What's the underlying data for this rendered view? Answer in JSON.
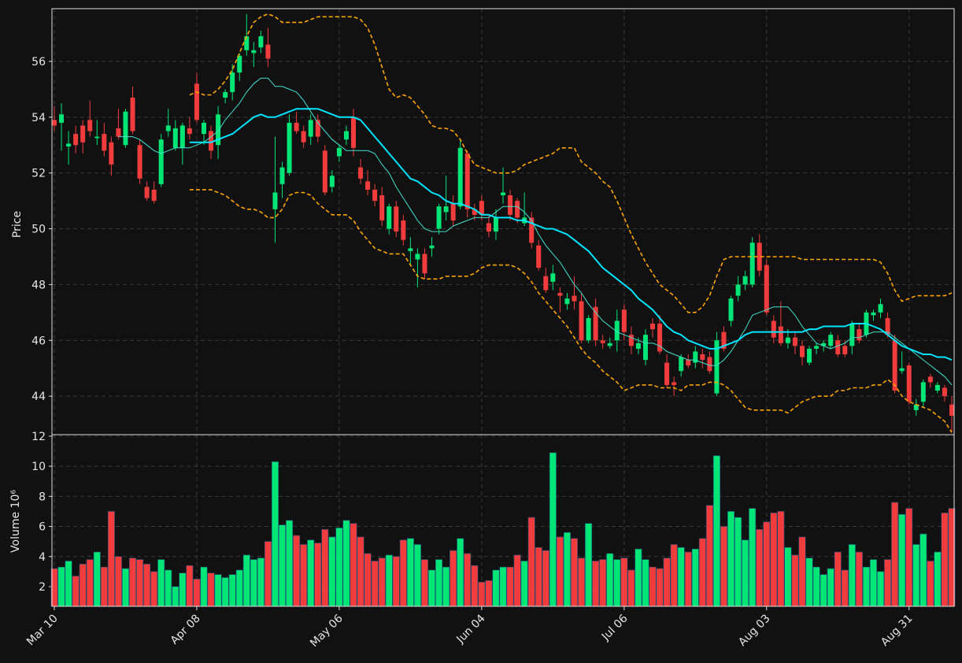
{
  "chart_data": {
    "type": "candlestick",
    "categories": [
      "Mar 10",
      null,
      null,
      null,
      null,
      null,
      null,
      null,
      null,
      null,
      null,
      null,
      null,
      null,
      null,
      null,
      null,
      null,
      null,
      null,
      "Apr 08",
      null,
      null,
      null,
      null,
      null,
      null,
      null,
      null,
      null,
      null,
      null,
      null,
      null,
      null,
      null,
      null,
      null,
      null,
      null,
      "May 06",
      null,
      null,
      null,
      null,
      null,
      null,
      null,
      null,
      null,
      null,
      null,
      null,
      null,
      null,
      null,
      null,
      null,
      null,
      null,
      "Jun 04",
      null,
      null,
      null,
      null,
      null,
      null,
      null,
      null,
      null,
      null,
      null,
      null,
      null,
      null,
      null,
      null,
      null,
      null,
      null,
      "Jul 06",
      null,
      null,
      null,
      null,
      null,
      null,
      null,
      null,
      null,
      null,
      null,
      null,
      null,
      null,
      null,
      null,
      null,
      null,
      null,
      "Aug 03",
      null,
      null,
      null,
      null,
      null,
      null,
      null,
      null,
      null,
      null,
      null,
      null,
      null,
      null,
      null,
      null,
      null,
      null,
      null,
      "Aug 31",
      null,
      null,
      null,
      null,
      null,
      null
    ],
    "open": [
      53.9,
      53.8,
      52.95,
      53.4,
      53.7,
      53.9,
      53.25,
      53.4,
      53.1,
      53.6,
      53.0,
      54.7,
      53.0,
      51.5,
      51.4,
      51.6,
      53.5,
      52.9,
      52.9,
      53.6,
      55.2,
      53.4,
      53.5,
      53.0,
      54.7,
      54.9,
      55.6,
      56.4,
      56.3,
      56.5,
      56.6,
      50.7,
      51.6,
      52.0,
      53.8,
      53.5,
      53.3,
      53.9,
      52.8,
      51.5,
      52.6,
      53.2,
      54.0,
      52.2,
      51.7,
      51.4,
      51.2,
      50.0,
      50.8,
      50.3,
      49.2,
      48.9,
      49.1,
      49.3,
      50.0,
      50.6,
      50.9,
      50.8,
      52.7,
      50.7,
      51.0,
      50.2,
      49.9,
      51.2,
      51.2,
      51.0,
      50.2,
      50.4,
      49.4,
      48.3,
      48.1,
      47.7,
      47.3,
      47.6,
      47.4,
      46.0,
      47.2,
      46.0,
      45.8,
      46.0,
      47.1,
      46.2,
      45.7,
      45.3,
      46.6,
      46.6,
      45.2,
      44.5,
      44.9,
      45.3,
      45.2,
      45.5,
      45.4,
      44.1,
      46.3,
      46.7,
      47.6,
      48.0,
      48.0,
      49.5,
      48.7,
      46.7,
      46.5,
      45.9,
      46.1,
      45.8,
      45.2,
      45.7,
      45.8,
      45.8,
      46.0,
      45.8,
      45.8,
      46.4,
      46.2,
      46.9,
      47.0,
      46.8,
      46.0,
      44.9,
      45.1,
      43.5,
      43.8,
      44.7,
      44.2,
      44.3,
      43.7
    ],
    "high": [
      54.4,
      54.5,
      53.5,
      53.7,
      53.9,
      54.6,
      53.9,
      53.8,
      53.3,
      54.3,
      54.3,
      55.1,
      53.2,
      51.7,
      51.7,
      53.4,
      54.3,
      53.9,
      53.8,
      54.0,
      55.6,
      53.9,
      53.7,
      54.4,
      55.0,
      55.9,
      56.3,
      57.7,
      56.7,
      57.1,
      57.2,
      53.3,
      52.4,
      54.1,
      54.2,
      53.7,
      54.1,
      54.1,
      53.0,
      52.1,
      53.0,
      53.7,
      54.3,
      52.5,
      52.1,
      51.6,
      51.5,
      50.9,
      51.0,
      50.5,
      49.7,
      49.3,
      49.3,
      49.7,
      50.9,
      51.9,
      51.2,
      53.2,
      52.8,
      50.9,
      51.2,
      50.5,
      50.7,
      52.2,
      51.4,
      51.1,
      51.3,
      50.6,
      49.6,
      48.6,
      48.7,
      47.9,
      47.7,
      48.3,
      47.7,
      46.9,
      47.5,
      46.2,
      46.1,
      47.1,
      47.3,
      46.5,
      46.1,
      46.4,
      46.8,
      46.9,
      45.5,
      44.7,
      45.5,
      45.5,
      45.8,
      45.7,
      45.6,
      46.3,
      46.5,
      47.6,
      48.3,
      48.5,
      49.7,
      49.8,
      48.9,
      46.9,
      47.4,
      46.4,
      46.3,
      46.0,
      45.8,
      45.9,
      46.0,
      46.3,
      46.2,
      46.0,
      46.7,
      46.6,
      47.1,
      47.1,
      47.5,
      47.0,
      46.2,
      45.6,
      45.2,
      43.9,
      44.6,
      44.8,
      44.5,
      44.4,
      44.0
    ],
    "low": [
      53.5,
      52.8,
      52.3,
      52.7,
      52.7,
      53.3,
      53.0,
      52.6,
      51.9,
      53.2,
      52.9,
      53.4,
      51.6,
      51.0,
      50.9,
      51.5,
      53.3,
      52.8,
      52.3,
      53.2,
      53.8,
      53.0,
      52.5,
      52.5,
      54.5,
      54.6,
      55.3,
      56.2,
      55.8,
      56.3,
      55.8,
      49.5,
      51.1,
      51.9,
      53.4,
      52.9,
      53.0,
      53.1,
      51.2,
      51.3,
      52.4,
      53.0,
      52.6,
      51.6,
      51.2,
      50.8,
      50.1,
      49.8,
      49.7,
      49.4,
      48.7,
      47.9,
      48.2,
      49.0,
      49.8,
      50.3,
      50.1,
      50.7,
      50.4,
      50.3,
      50.3,
      49.7,
      49.6,
      50.9,
      50.3,
      50.2,
      50.1,
      49.3,
      48.5,
      47.7,
      47.8,
      47.0,
      47.1,
      47.1,
      45.9,
      45.9,
      45.8,
      45.7,
      45.7,
      45.6,
      46.0,
      45.5,
      45.5,
      45.1,
      46.1,
      45.5,
      44.3,
      44.0,
      44.7,
      45.0,
      45.0,
      45.0,
      44.8,
      44.0,
      45.6,
      46.5,
      47.4,
      47.8,
      47.9,
      48.3,
      46.9,
      45.9,
      45.8,
      45.7,
      45.5,
      45.1,
      45.1,
      45.5,
      45.6,
      45.7,
      45.4,
      45.4,
      45.5,
      45.9,
      46.1,
      46.7,
      46.8,
      46.1,
      44.1,
      44.8,
      43.7,
      43.3,
      43.6,
      44.3,
      44.1,
      43.8,
      42.7
    ],
    "close": [
      53.7,
      54.1,
      53.05,
      53.0,
      53.1,
      53.5,
      53.3,
      52.8,
      52.3,
      53.3,
      54.2,
      53.5,
      51.8,
      51.1,
      51.0,
      53.2,
      53.7,
      53.6,
      53.7,
      53.4,
      53.9,
      53.8,
      52.8,
      54.1,
      54.9,
      55.6,
      56.2,
      56.9,
      56.4,
      56.9,
      56.1,
      51.3,
      52.2,
      53.8,
      53.5,
      53.1,
      53.9,
      53.3,
      51.3,
      51.9,
      52.9,
      53.5,
      52.9,
      51.8,
      51.4,
      51.0,
      50.3,
      50.8,
      49.9,
      49.6,
      49.3,
      49.1,
      48.4,
      49.4,
      50.8,
      50.8,
      50.3,
      52.9,
      50.7,
      50.5,
      50.5,
      49.9,
      50.4,
      51.3,
      50.5,
      50.4,
      50.4,
      49.5,
      48.6,
      47.8,
      48.4,
      47.6,
      47.5,
      47.4,
      46.0,
      46.8,
      46.0,
      45.9,
      45.9,
      46.7,
      46.3,
      45.8,
      45.9,
      46.2,
      46.4,
      45.6,
      44.4,
      44.4,
      45.4,
      45.1,
      45.6,
      45.3,
      44.9,
      46.0,
      45.7,
      47.5,
      48.0,
      48.3,
      49.5,
      48.5,
      47.0,
      46.1,
      45.9,
      46.1,
      45.8,
      45.4,
      45.7,
      45.8,
      45.9,
      46.2,
      45.5,
      45.5,
      46.6,
      46.0,
      47.0,
      47.0,
      47.3,
      46.2,
      44.2,
      45.0,
      43.8,
      43.7,
      44.5,
      44.5,
      44.4,
      44.0,
      43.3
    ],
    "volume": [
      3.2,
      3.3,
      3.7,
      2.7,
      3.5,
      3.8,
      4.3,
      3.3,
      7.0,
      4.0,
      3.2,
      3.9,
      3.8,
      3.5,
      3.0,
      3.8,
      3.1,
      2.0,
      2.9,
      3.4,
      2.5,
      3.3,
      2.9,
      2.8,
      2.6,
      2.8,
      3.1,
      4.1,
      3.8,
      3.9,
      5.0,
      10.3,
      6.1,
      6.4,
      5.4,
      4.8,
      5.1,
      4.9,
      5.8,
      5.3,
      5.9,
      6.4,
      6.2,
      5.3,
      4.2,
      3.7,
      3.9,
      4.1,
      4.0,
      5.1,
      5.2,
      4.8,
      3.8,
      3.1,
      3.8,
      3.3,
      4.4,
      5.2,
      4.2,
      3.4,
      2.3,
      2.4,
      3.1,
      3.3,
      3.3,
      4.1,
      3.7,
      6.6,
      4.6,
      4.4,
      10.9,
      5.3,
      5.6,
      5.2,
      3.9,
      6.2,
      3.7,
      3.8,
      4.2,
      3.8,
      3.9,
      3.1,
      4.5,
      3.8,
      3.3,
      3.2,
      3.9,
      4.8,
      4.6,
      4.3,
      4.5,
      5.2,
      7.4,
      10.7,
      6.0,
      7.0,
      6.6,
      5.1,
      7.2,
      5.8,
      6.3,
      6.9,
      7.0,
      4.6,
      4.1,
      5.3,
      3.9,
      3.3,
      2.8,
      3.2,
      4.3,
      3.1,
      4.8,
      4.3,
      3.3,
      3.8,
      3.0,
      3.8,
      7.6,
      6.8,
      7.2,
      4.8,
      5.5,
      3.7,
      4.3,
      6.9,
      7.2
    ],
    "up_color": "#00e676",
    "down_color": "#f03c3c",
    "grid": true,
    "price_axis": {
      "ylabel": "Price",
      "ylim": [
        42.62,
        57.89
      ],
      "yticks": [
        44,
        46,
        48,
        50,
        52,
        54,
        56
      ]
    },
    "volume_axis": {
      "ylabel": "Volume  10⁶",
      "ylim": [
        0.69,
        12.1
      ],
      "yticks": [
        2,
        4,
        6,
        8,
        10,
        12
      ]
    },
    "overlays": [
      {
        "color": "#40e0d0",
        "style": "thin",
        "values": [
          null,
          null,
          null,
          null,
          null,
          null,
          null,
          null,
          null,
          53.3,
          53.3,
          53.3,
          53.2,
          53.0,
          52.8,
          52.7,
          52.8,
          52.9,
          52.9,
          52.9,
          53.0,
          53.1,
          53.3,
          53.5,
          53.9,
          54.2,
          54.5,
          54.9,
          55.2,
          55.4,
          55.4,
          55.1,
          55.1,
          55.0,
          54.9,
          54.6,
          54.2,
          53.8,
          53.5,
          53.2,
          53.0,
          52.8,
          52.8,
          52.8,
          52.8,
          52.7,
          52.3,
          52.0,
          51.5,
          51.1,
          50.7,
          50.3,
          50.0,
          49.9,
          49.9,
          49.9,
          50.1,
          50.2,
          50.3,
          50.4,
          50.4,
          50.4,
          50.6,
          50.8,
          50.8,
          50.8,
          50.6,
          50.3,
          49.8,
          49.4,
          49.1,
          48.8,
          48.4,
          48.0,
          47.7,
          47.3,
          47.0,
          46.7,
          46.5,
          46.3,
          46.2,
          46.1,
          46.0,
          45.9,
          45.9,
          45.8,
          45.6,
          45.5,
          45.4,
          45.3,
          45.3,
          45.2,
          45.1,
          45.1,
          45.3,
          45.6,
          46.0,
          46.4,
          46.9,
          47.0,
          47.1,
          47.2,
          47.2,
          47.2,
          46.9,
          46.5,
          46.2,
          45.9,
          45.8,
          45.7,
          45.8,
          45.9,
          46.1,
          46.1,
          46.2,
          46.3,
          46.3,
          46.3,
          46.1,
          45.9,
          45.7,
          45.5,
          45.3,
          45.1,
          44.9,
          44.7,
          44.4
        ]
      },
      {
        "color": "#00e5ff",
        "style": "thick",
        "values": [
          null,
          null,
          null,
          null,
          null,
          null,
          null,
          null,
          null,
          null,
          null,
          null,
          null,
          null,
          null,
          null,
          null,
          null,
          null,
          53.1,
          53.1,
          53.1,
          53.1,
          53.2,
          53.3,
          53.4,
          53.6,
          53.8,
          54.0,
          54.1,
          54.0,
          54.0,
          54.1,
          54.2,
          54.3,
          54.3,
          54.3,
          54.3,
          54.2,
          54.1,
          54.0,
          54.0,
          54.0,
          53.9,
          53.6,
          53.3,
          53.0,
          52.7,
          52.4,
          52.1,
          51.8,
          51.7,
          51.5,
          51.3,
          51.2,
          51.0,
          50.9,
          50.9,
          50.8,
          50.7,
          50.5,
          50.5,
          50.4,
          50.4,
          50.4,
          50.3,
          50.3,
          50.2,
          50.1,
          50.0,
          50.0,
          49.9,
          49.8,
          49.6,
          49.4,
          49.2,
          48.9,
          48.6,
          48.4,
          48.2,
          48.0,
          47.8,
          47.5,
          47.3,
          47.1,
          46.8,
          46.5,
          46.3,
          46.2,
          46.0,
          45.9,
          45.8,
          45.7,
          45.7,
          45.8,
          45.9,
          46.0,
          46.2,
          46.3,
          46.3,
          46.3,
          46.3,
          46.3,
          46.3,
          46.3,
          46.3,
          46.4,
          46.4,
          46.5,
          46.5,
          46.5,
          46.5,
          46.6,
          46.6,
          46.6,
          46.5,
          46.4,
          46.2,
          46.0,
          45.8,
          45.7,
          45.6,
          45.5,
          45.5,
          45.4,
          45.4,
          45.3
        ]
      },
      {
        "color": "#ffa500",
        "style": "dashed",
        "values": [
          null,
          null,
          null,
          null,
          null,
          null,
          null,
          null,
          null,
          null,
          null,
          null,
          null,
          null,
          null,
          null,
          null,
          null,
          null,
          54.8,
          54.9,
          54.8,
          54.8,
          55.0,
          55.3,
          55.7,
          56.3,
          56.9,
          57.4,
          57.6,
          57.7,
          57.6,
          57.4,
          57.4,
          57.4,
          57.4,
          57.5,
          57.6,
          57.6,
          57.6,
          57.6,
          57.6,
          57.6,
          57.5,
          57.2,
          56.6,
          55.8,
          55.0,
          54.7,
          54.8,
          54.7,
          54.4,
          54.1,
          53.7,
          53.6,
          53.6,
          53.5,
          53.2,
          52.7,
          52.3,
          52.2,
          52.1,
          52.0,
          52.0,
          52.0,
          52.1,
          52.3,
          52.4,
          52.5,
          52.6,
          52.7,
          52.9,
          52.9,
          52.9,
          52.4,
          52.2,
          52.0,
          51.7,
          51.5,
          51.0,
          50.4,
          49.8,
          49.3,
          48.8,
          48.4,
          48.0,
          47.8,
          47.6,
          47.3,
          47.0,
          47.0,
          47.2,
          47.6,
          48.3,
          48.9,
          49.0,
          49.0,
          49.0,
          49.0,
          49.0,
          49.0,
          49.0,
          49.0,
          49.0,
          49.0,
          48.9,
          48.9,
          48.9,
          48.9,
          48.9,
          48.9,
          48.9,
          48.9,
          48.9,
          48.9,
          48.9,
          48.8,
          48.4,
          47.8,
          47.4,
          47.5,
          47.6,
          47.6,
          47.6,
          47.6,
          47.6,
          47.7
        ]
      },
      {
        "color": "#ffa500",
        "style": "dashed",
        "values": [
          null,
          null,
          null,
          null,
          null,
          null,
          null,
          null,
          null,
          null,
          null,
          null,
          null,
          null,
          null,
          null,
          null,
          null,
          null,
          51.4,
          51.4,
          51.4,
          51.4,
          51.3,
          51.2,
          51.0,
          50.8,
          50.7,
          50.7,
          50.6,
          50.4,
          50.4,
          50.7,
          51.2,
          51.3,
          51.3,
          51.2,
          50.9,
          50.7,
          50.5,
          50.5,
          50.5,
          50.3,
          49.9,
          49.6,
          49.3,
          49.2,
          49.1,
          49.1,
          49.1,
          48.7,
          48.3,
          48.2,
          48.2,
          48.2,
          48.3,
          48.3,
          48.3,
          48.3,
          48.4,
          48.6,
          48.7,
          48.7,
          48.7,
          48.7,
          48.6,
          48.4,
          48.1,
          47.7,
          47.4,
          47.1,
          46.8,
          46.5,
          46.1,
          45.7,
          45.4,
          45.2,
          44.9,
          44.7,
          44.5,
          44.2,
          44.3,
          44.4,
          44.4,
          44.4,
          44.3,
          44.3,
          44.3,
          44.2,
          44.4,
          44.4,
          44.4,
          44.5,
          44.5,
          44.4,
          44.2,
          43.9,
          43.6,
          43.5,
          43.5,
          43.5,
          43.5,
          43.5,
          43.4,
          43.6,
          43.8,
          43.9,
          44.0,
          44.0,
          44.0,
          44.2,
          44.2,
          44.3,
          44.3,
          44.3,
          44.4,
          44.4,
          44.6,
          44.4,
          44.0,
          43.8,
          43.7,
          43.6,
          43.5,
          43.3,
          43.1,
          42.7
        ]
      }
    ]
  }
}
